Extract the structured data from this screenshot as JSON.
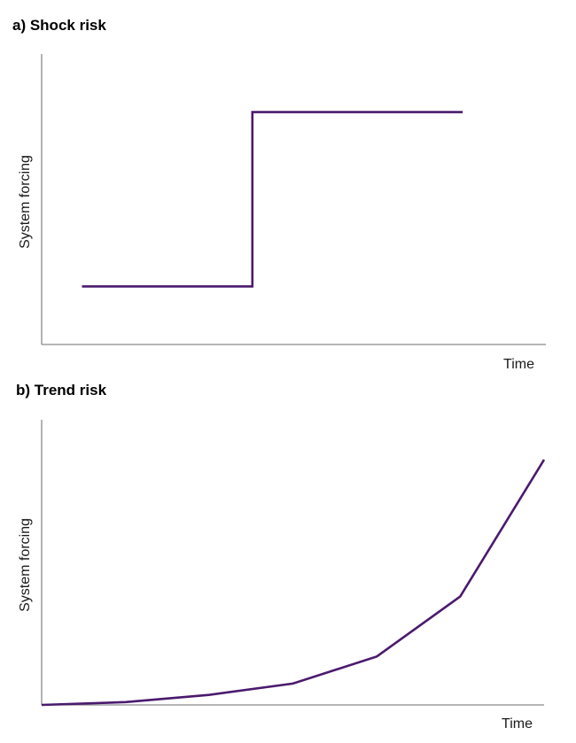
{
  "chart_data": [
    {
      "type": "line",
      "title": "a) Shock risk",
      "xlabel": "Time",
      "ylabel": "System forcing",
      "grid": false,
      "x_ticks": false,
      "y_ticks": false,
      "xlim": [
        0,
        1
      ],
      "ylim": [
        0,
        1
      ],
      "series": [
        {
          "color": "#4b1a6e",
          "x": [
            0.08,
            0.418,
            0.418,
            0.835
          ],
          "y": [
            0.2,
            0.2,
            0.8,
            0.8
          ]
        }
      ]
    },
    {
      "type": "line",
      "title": "b) Trend risk",
      "xlabel": "Time",
      "ylabel": "System forcing",
      "grid": false,
      "x_ticks": false,
      "y_ticks": false,
      "xlim": [
        0,
        1
      ],
      "ylim": [
        0,
        1
      ],
      "series": [
        {
          "color": "#4b1a6e",
          "x": [
            0,
            0.167,
            0.333,
            0.5,
            0.667,
            0.833,
            1.0
          ],
          "y": [
            0.0,
            0.01,
            0.035,
            0.075,
            0.17,
            0.38,
            0.86
          ]
        }
      ]
    }
  ]
}
